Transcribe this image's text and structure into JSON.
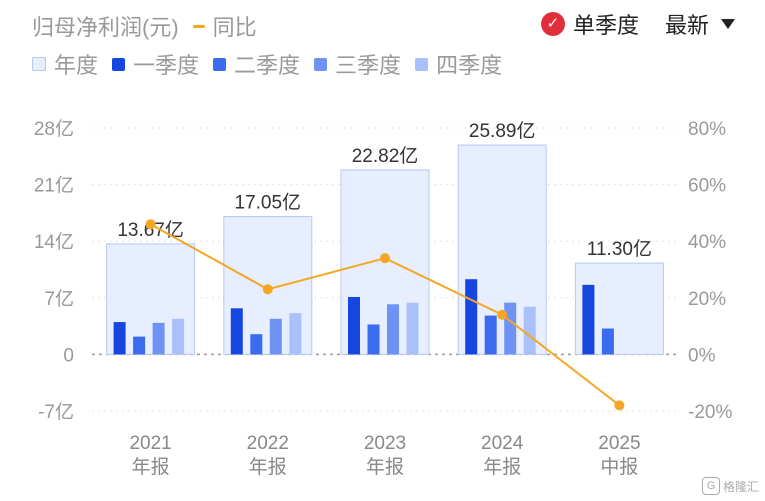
{
  "header": {
    "metric_label": "归母净利润(元)",
    "yoy_label": "同比",
    "single_quarter_label": "单季度",
    "latest_label": "最新",
    "check_glyph": "✓"
  },
  "legend": [
    {
      "label": "年度",
      "color": "#e6eeff",
      "border": "#b7c9f2"
    },
    {
      "label": "一季度",
      "color": "#1646e0"
    },
    {
      "label": "二季度",
      "color": "#3b6cf0"
    },
    {
      "label": "三季度",
      "color": "#6f93f5"
    },
    {
      "label": "四季度",
      "color": "#a9c0fa"
    }
  ],
  "colors": {
    "annual_fill": "#e6eeff",
    "annual_stroke": "#b7c9f2",
    "line": "#f5a623",
    "axis_text": "#999999"
  },
  "watermark": {
    "glyph": "G",
    "text": "格隆汇"
  },
  "chart_data": {
    "type": "bar",
    "categories": [
      [
        "2021",
        "年报"
      ],
      [
        "2022",
        "年报"
      ],
      [
        "2023",
        "年报"
      ],
      [
        "2024",
        "年报"
      ],
      [
        "2025",
        "中报"
      ]
    ],
    "annual": {
      "values": [
        13.67,
        17.05,
        22.82,
        25.89,
        11.3
      ],
      "labels": [
        "13.67亿",
        "17.05亿",
        "22.82亿",
        "25.89亿",
        "11.30亿"
      ]
    },
    "series": [
      {
        "name": "一季度",
        "values": [
          4.0,
          5.7,
          7.1,
          9.3,
          8.6
        ]
      },
      {
        "name": "二季度",
        "values": [
          2.2,
          2.5,
          3.7,
          4.8,
          3.2
        ]
      },
      {
        "name": "三季度",
        "values": [
          3.9,
          4.4,
          6.2,
          6.4,
          null
        ]
      },
      {
        "name": "四季度",
        "values": [
          4.4,
          5.1,
          6.4,
          5.9,
          null
        ]
      }
    ],
    "yoy": {
      "name": "同比",
      "values": [
        46,
        23,
        34,
        14,
        -18
      ]
    },
    "y_left": {
      "ticks": [
        28,
        21,
        14,
        7,
        0,
        -7
      ],
      "labels": [
        "28亿",
        "21亿",
        "14亿",
        "7亿",
        "0",
        "-7亿"
      ],
      "range": [
        -7,
        28
      ]
    },
    "y_right": {
      "ticks": [
        80,
        60,
        40,
        20,
        0,
        -20
      ],
      "labels": [
        "80%",
        "60%",
        "40%",
        "20%",
        "0%",
        "-20%"
      ],
      "range": [
        -20,
        80
      ]
    }
  }
}
